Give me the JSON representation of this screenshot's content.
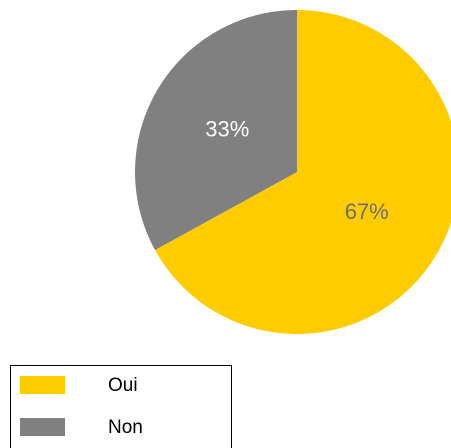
{
  "chart_data": {
    "type": "pie",
    "categories": [
      "Oui",
      "Non"
    ],
    "values": [
      67,
      33
    ],
    "value_labels": [
      "67%",
      "33%"
    ],
    "colors": [
      "#ffcc00",
      "#808080"
    ],
    "label_colors": [
      "#6e6e6e",
      "#ffffff"
    ],
    "legend": "bottom-left"
  }
}
